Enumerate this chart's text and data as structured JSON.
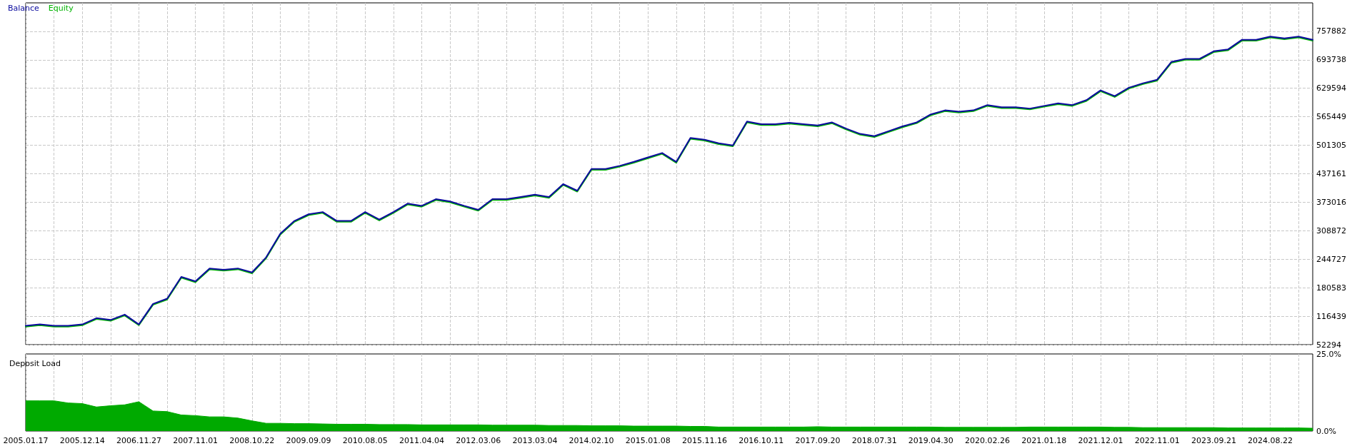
{
  "chart_data": [
    {
      "type": "line",
      "categories": [
        "2005.01.17",
        null,
        null,
        null,
        "2005.12.14",
        null,
        null,
        null,
        "2006.11.27",
        null,
        null,
        null,
        "2007.11.01",
        null,
        null,
        null,
        "2008.10.22",
        null,
        null,
        null,
        "2009.09.09",
        null,
        null,
        null,
        "2010.08.05",
        null,
        null,
        null,
        "2011.04.04",
        null,
        null,
        null,
        "2012.03.06",
        null,
        null,
        null,
        "2013.03.04",
        null,
        null,
        null,
        "2014.02.10",
        null,
        null,
        null,
        "2015.01.08",
        null,
        null,
        null,
        "2015.11.16",
        null,
        null,
        null,
        "2016.10.11",
        null,
        null,
        null,
        "2017.09.20",
        null,
        null,
        null,
        "2018.07.31",
        null,
        null,
        null,
        "2019.04.30",
        null,
        null,
        null,
        "2020.02.26",
        null,
        null,
        null,
        "2021.01.18",
        null,
        null,
        null,
        "2021.12.01",
        null,
        null,
        null,
        "2022.11.01",
        null,
        null,
        null,
        "2023.09.21",
        null,
        null,
        null,
        "2024.08.22",
        null,
        null,
        null
      ],
      "series": [
        {
          "name": "Equity",
          "color": "#00b400",
          "values": [
            93000,
            96000,
            93000,
            93000,
            96000,
            110000,
            106000,
            118000,
            96000,
            142000,
            154000,
            203000,
            193000,
            222000,
            219000,
            222000,
            213000,
            247000,
            300000,
            329000,
            344000,
            349000,
            329000,
            329000,
            349000,
            332000,
            349000,
            368000,
            363000,
            378000,
            373000,
            363000,
            354000,
            378000,
            378000,
            383000,
            388000,
            383000,
            412000,
            397000,
            446000,
            446000,
            453000,
            462000,
            472000,
            482000,
            462000,
            516000,
            512000,
            504000,
            499000,
            553000,
            547000,
            547000,
            550000,
            547000,
            544000,
            551000,
            537000,
            525000,
            520000,
            531000,
            542000,
            551000,
            569000,
            578000,
            575000,
            578000,
            590000,
            585000,
            585000,
            582000,
            588000,
            594000,
            590000,
            601000,
            623000,
            610000,
            629000,
            639000,
            647000,
            687000,
            694000,
            694000,
            711000,
            715000,
            737000,
            737000,
            744000,
            740000,
            744000,
            737000
          ]
        },
        {
          "name": "Balance",
          "color": "#0a0a9e",
          "values": [
            95000,
            98000,
            95000,
            95000,
            98000,
            112000,
            108000,
            120000,
            98000,
            144000,
            156000,
            205000,
            195000,
            224000,
            221000,
            224000,
            215000,
            249000,
            302000,
            331000,
            346000,
            351000,
            331000,
            331000,
            351000,
            334000,
            351000,
            370000,
            365000,
            380000,
            375000,
            365000,
            356000,
            380000,
            380000,
            385000,
            390000,
            385000,
            414000,
            399000,
            448000,
            448000,
            455000,
            464000,
            474000,
            484000,
            464000,
            518000,
            514000,
            506000,
            501000,
            555000,
            549000,
            549000,
            552000,
            549000,
            546000,
            553000,
            539000,
            527000,
            522000,
            533000,
            544000,
            553000,
            571000,
            580000,
            577000,
            580000,
            592000,
            587000,
            587000,
            584000,
            590000,
            596000,
            592000,
            603000,
            625000,
            612000,
            631000,
            641000,
            649000,
            689000,
            696000,
            696000,
            713000,
            717000,
            739000,
            739000,
            746000,
            742000,
            746000,
            739000
          ]
        }
      ],
      "ylim": [
        52294,
        822026
      ],
      "yticks": [
        52294,
        116439,
        180583,
        244727,
        308872,
        373016,
        437161,
        501305,
        565449,
        629594,
        693738,
        757882
      ],
      "grid": true,
      "legend": "top left",
      "marker": "none",
      "tick_labels": "y"
    },
    {
      "type": "area",
      "title": "Deposit Load",
      "categories": [
        "2005.01.17",
        null,
        null,
        null,
        "2005.12.14",
        null,
        null,
        null,
        "2006.11.27",
        null,
        null,
        null,
        "2007.11.01",
        null,
        null,
        null,
        "2008.10.22",
        null,
        null,
        null,
        "2009.09.09",
        null,
        null,
        null,
        "2010.08.05",
        null,
        null,
        null,
        "2011.04.04",
        null,
        null,
        null,
        "2012.03.06",
        null,
        null,
        null,
        "2013.03.04",
        null,
        null,
        null,
        "2014.02.10",
        null,
        null,
        null,
        "2015.01.08",
        null,
        null,
        null,
        "2015.11.16",
        null,
        null,
        null,
        "2016.10.11",
        null,
        null,
        null,
        "2017.09.20",
        null,
        null,
        null,
        "2018.07.31",
        null,
        null,
        null,
        "2019.04.30",
        null,
        null,
        null,
        "2020.02.26",
        null,
        null,
        null,
        "2021.01.18",
        null,
        null,
        null,
        "2021.12.01",
        null,
        null,
        null,
        "2022.11.01",
        null,
        null,
        null,
        "2023.09.21",
        null,
        null,
        null,
        "2024.08.22",
        null,
        null,
        null
      ],
      "color": "#00aa00",
      "values": [
        9.8,
        9.8,
        9.8,
        9.1,
        8.9,
        7.8,
        8.2,
        8.5,
        9.5,
        6.5,
        6.3,
        5.2,
        5.0,
        4.6,
        4.6,
        4.2,
        3.3,
        2.5,
        2.5,
        2.4,
        2.4,
        2.3,
        2.2,
        2.2,
        2.2,
        2.1,
        2.1,
        2.1,
        2.0,
        2.0,
        2.0,
        2.0,
        2.0,
        1.9,
        1.9,
        1.9,
        1.9,
        1.8,
        1.8,
        1.8,
        1.7,
        1.7,
        1.7,
        1.6,
        1.6,
        1.6,
        1.6,
        1.5,
        1.5,
        1.3,
        1.3,
        1.3,
        1.3,
        1.3,
        1.3,
        1.3,
        1.4,
        1.3,
        1.3,
        1.3,
        1.3,
        1.3,
        1.3,
        1.3,
        1.3,
        1.2,
        1.2,
        1.2,
        1.2,
        1.2,
        1.2,
        1.3,
        1.3,
        1.3,
        1.3,
        1.3,
        1.3,
        1.2,
        1.2,
        1.1,
        1.1,
        1.1,
        1.1,
        1.1,
        1.1,
        1.0,
        1.0,
        1.0,
        1.0,
        1.0,
        1.0,
        0.9
      ],
      "ylim": [
        0,
        25
      ],
      "yticks": [
        {
          "value": 0,
          "label": "0.0%"
        },
        {
          "value": 25,
          "label": "25.0%"
        }
      ],
      "grid": "x",
      "marker": "none"
    }
  ]
}
